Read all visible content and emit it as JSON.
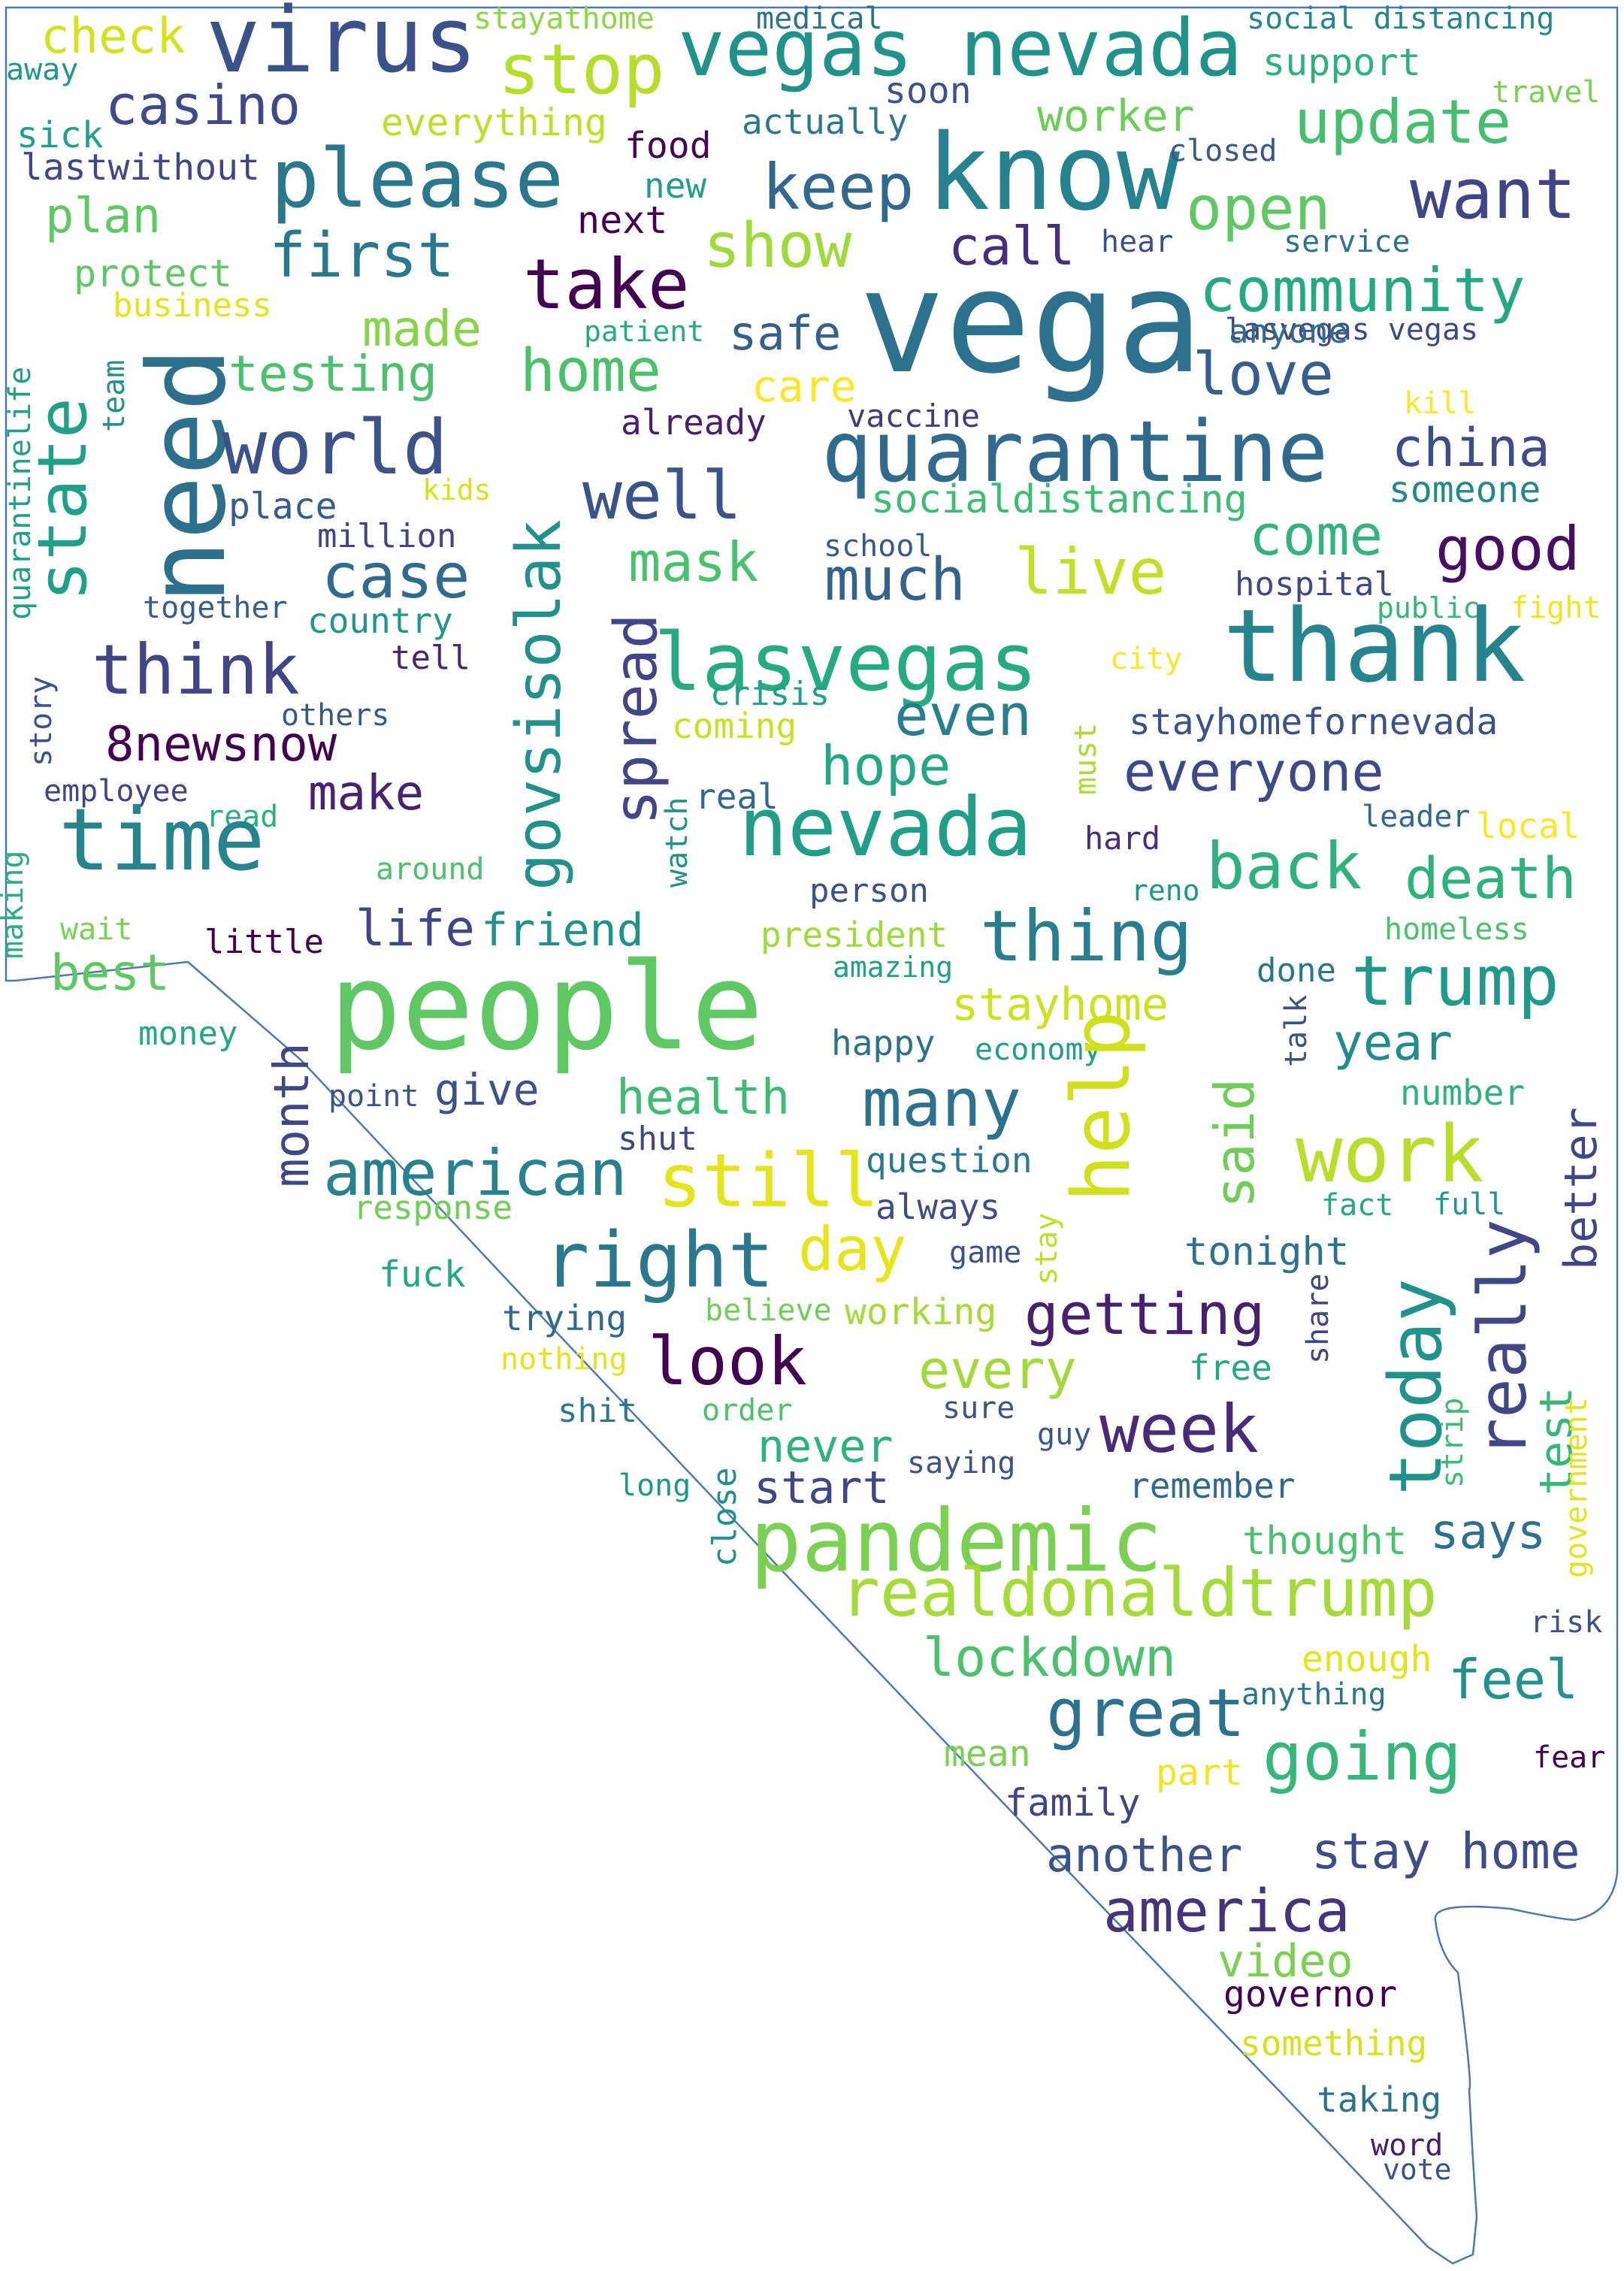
{
  "outline_color": "#4a7ab0",
  "background_color": "#ffffff",
  "words": [
    {
      "text": "check",
      "color": "#d2e21b"
    },
    {
      "text": "virus",
      "color": "#3b518b"
    },
    {
      "text": "stayathome",
      "color": "#8ed645"
    },
    {
      "text": "medical",
      "color": "#2c718e"
    },
    {
      "text": "social distancing",
      "color": "#25858e"
    },
    {
      "text": "away",
      "color": "#1f988b"
    },
    {
      "text": "stop",
      "color": "#b5de2b"
    },
    {
      "text": "vegas nevada",
      "color": "#20928c"
    },
    {
      "text": "support",
      "color": "#2db27d"
    },
    {
      "text": "travel",
      "color": "#7ad151"
    },
    {
      "text": "casino",
      "color": "#3e4a89"
    },
    {
      "text": "soon",
      "color": "#3b528b"
    },
    {
      "text": "sick",
      "color": "#1fa187"
    },
    {
      "text": "everything",
      "color": "#bddf26"
    },
    {
      "text": "actually",
      "color": "#2a788e"
    },
    {
      "text": "worker",
      "color": "#6ccd5a"
    },
    {
      "text": "update",
      "color": "#44bf70"
    },
    {
      "text": "lastwithout",
      "color": "#3f4788"
    },
    {
      "text": "please",
      "color": "#2a788e"
    },
    {
      "text": "food",
      "color": "#450559"
    },
    {
      "text": "know",
      "color": "#26828e"
    },
    {
      "text": "closed",
      "color": "#38588c"
    },
    {
      "text": "plan",
      "color": "#5ec962"
    },
    {
      "text": "new",
      "color": "#1f9e89"
    },
    {
      "text": "keep",
      "color": "#31688e"
    },
    {
      "text": "want",
      "color": "#414487"
    },
    {
      "text": "open",
      "color": "#5ec962"
    },
    {
      "text": "next",
      "color": "#440154"
    },
    {
      "text": "first",
      "color": "#2a788e"
    },
    {
      "text": "show",
      "color": "#a0da39"
    },
    {
      "text": "call",
      "color": "#46307e"
    },
    {
      "text": "hear",
      "color": "#3b518b"
    },
    {
      "text": "service",
      "color": "#2c728e"
    },
    {
      "text": "protect",
      "color": "#5ec962"
    },
    {
      "text": "take",
      "color": "#440154"
    },
    {
      "text": "vega",
      "color": "#2c728e"
    },
    {
      "text": "community",
      "color": "#23a983"
    },
    {
      "text": "business",
      "color": "#e5e419"
    },
    {
      "text": "made",
      "color": "#86d549"
    },
    {
      "text": "patient",
      "color": "#25ab82"
    },
    {
      "text": "safe",
      "color": "#35608d"
    },
    {
      "text": "lasvegas vegas",
      "color": "#3f4889"
    },
    {
      "text": "quarantinelife",
      "color": "#1fa088"
    },
    {
      "text": "team",
      "color": "#21918c"
    },
    {
      "text": "need",
      "color": "#2d708e"
    },
    {
      "text": "testing",
      "color": "#4ac16d"
    },
    {
      "text": "home",
      "color": "#4ac16d"
    },
    {
      "text": "care",
      "color": "#fde725"
    },
    {
      "text": "love",
      "color": "#355f8d"
    },
    {
      "text": "anyone",
      "color": "#2f6c8e"
    },
    {
      "text": "kill",
      "color": "#fde725"
    },
    {
      "text": "state",
      "color": "#1fa188"
    },
    {
      "text": "world",
      "color": "#3b528b"
    },
    {
      "text": "already",
      "color": "#481f70"
    },
    {
      "text": "vaccine",
      "color": "#443a83"
    },
    {
      "text": "quarantine",
      "color": "#306a8e"
    },
    {
      "text": "china",
      "color": "#3e4c8a"
    },
    {
      "text": "kids",
      "color": "#d8e219"
    },
    {
      "text": "place",
      "color": "#365c8d"
    },
    {
      "text": "govsisolak",
      "color": "#21918c"
    },
    {
      "text": "well",
      "color": "#3a538b"
    },
    {
      "text": "someone",
      "color": "#23888e"
    },
    {
      "text": "million",
      "color": "#414487"
    },
    {
      "text": "socialdistancing",
      "color": "#3dbc74"
    },
    {
      "text": "come",
      "color": "#31b57b"
    },
    {
      "text": "good",
      "color": "#470e61"
    },
    {
      "text": "school",
      "color": "#38598c"
    },
    {
      "text": "mask",
      "color": "#4ac16d"
    },
    {
      "text": "much",
      "color": "#33628d"
    },
    {
      "text": "live",
      "color": "#c2df23"
    },
    {
      "text": "case",
      "color": "#2f6b8e"
    },
    {
      "text": "hospital",
      "color": "#3f4889"
    },
    {
      "text": "public",
      "color": "#35b779"
    },
    {
      "text": "fight",
      "color": "#f1e51d"
    },
    {
      "text": "together",
      "color": "#365d8d"
    },
    {
      "text": "country",
      "color": "#1f988b"
    },
    {
      "text": "lasvegas",
      "color": "#25ab82"
    },
    {
      "text": "thank",
      "color": "#25858e"
    },
    {
      "text": "think",
      "color": "#414487"
    },
    {
      "text": "tell",
      "color": "#482576"
    },
    {
      "text": "crisis",
      "color": "#1fa088"
    },
    {
      "text": "city",
      "color": "#fde725"
    },
    {
      "text": "spread",
      "color": "#404688"
    },
    {
      "text": "story",
      "color": "#3b528b"
    },
    {
      "text": "others",
      "color": "#38598c"
    },
    {
      "text": "coming",
      "color": "#c8e020"
    },
    {
      "text": "even",
      "color": "#277f8e"
    },
    {
      "text": "must",
      "color": "#addc30"
    },
    {
      "text": "stayhomefornevada",
      "color": "#3b528b"
    },
    {
      "text": "8newsnow",
      "color": "#440154"
    },
    {
      "text": "hope",
      "color": "#22a884"
    },
    {
      "text": "everyone",
      "color": "#3e4989"
    },
    {
      "text": "make",
      "color": "#482173"
    },
    {
      "text": "employee",
      "color": "#414487"
    },
    {
      "text": "watch",
      "color": "#21918c"
    },
    {
      "text": "real",
      "color": "#31688e"
    },
    {
      "text": "read",
      "color": "#2ab07f"
    },
    {
      "text": "leader",
      "color": "#31688e"
    },
    {
      "text": "local",
      "color": "#fde725"
    },
    {
      "text": "time",
      "color": "#25848e"
    },
    {
      "text": "nevada",
      "color": "#1f9f88"
    },
    {
      "text": "hard",
      "color": "#472d7b"
    },
    {
      "text": "back",
      "color": "#2db27d"
    },
    {
      "text": "death",
      "color": "#2db27d"
    },
    {
      "text": "around",
      "color": "#4ac16d"
    },
    {
      "text": "making",
      "color": "#2ab07f"
    },
    {
      "text": "reno",
      "color": "#1f968b"
    },
    {
      "text": "person",
      "color": "#3b528b"
    },
    {
      "text": "wait",
      "color": "#7ad151"
    },
    {
      "text": "life",
      "color": "#3f4788"
    },
    {
      "text": "friend",
      "color": "#21918c"
    },
    {
      "text": "president",
      "color": "#a0da39"
    },
    {
      "text": "thing",
      "color": "#277e8e"
    },
    {
      "text": "homeless",
      "color": "#4ac16d"
    },
    {
      "text": "little",
      "color": "#440154"
    },
    {
      "text": "best",
      "color": "#5ec962"
    },
    {
      "text": "amazing",
      "color": "#1fa187"
    },
    {
      "text": "done",
      "color": "#2a768e"
    },
    {
      "text": "trump",
      "color": "#1f9a8a"
    },
    {
      "text": "people",
      "color": "#5ec962"
    },
    {
      "text": "stayhome",
      "color": "#cde11d"
    },
    {
      "text": "money",
      "color": "#22a884"
    },
    {
      "text": "month",
      "color": "#3f4788"
    },
    {
      "text": "happy",
      "color": "#2c728e"
    },
    {
      "text": "economy",
      "color": "#1f9e89"
    },
    {
      "text": "talk",
      "color": "#3b528b"
    },
    {
      "text": "year",
      "color": "#228c8d"
    },
    {
      "text": "help",
      "color": "#d0e11c"
    },
    {
      "text": "said",
      "color": "#6ece58"
    },
    {
      "text": "point",
      "color": "#39568c"
    },
    {
      "text": "give",
      "color": "#3b528b"
    },
    {
      "text": "health",
      "color": "#3fbc73"
    },
    {
      "text": "many",
      "color": "#2c728e"
    },
    {
      "text": "number",
      "color": "#2db27d"
    },
    {
      "text": "better",
      "color": "#3f4788"
    },
    {
      "text": "shut",
      "color": "#3f4788"
    },
    {
      "text": "work",
      "color": "#b8de29"
    },
    {
      "text": "american",
      "color": "#26828e"
    },
    {
      "text": "question",
      "color": "#2a788e"
    },
    {
      "text": "response",
      "color": "#6ece58"
    },
    {
      "text": "still",
      "color": "#e5e419"
    },
    {
      "text": "always",
      "color": "#3e4c8a"
    },
    {
      "text": "fact",
      "color": "#23a983"
    },
    {
      "text": "full",
      "color": "#1f988b"
    },
    {
      "text": "stay",
      "color": "#bddf26"
    },
    {
      "text": "day",
      "color": "#e7e419"
    },
    {
      "text": "game",
      "color": "#3b528b"
    },
    {
      "text": "tonight",
      "color": "#2c728e"
    },
    {
      "text": "right",
      "color": "#2a788e"
    },
    {
      "text": "today",
      "color": "#20928c"
    },
    {
      "text": "really",
      "color": "#3f4788"
    },
    {
      "text": "fuck",
      "color": "#22a884"
    },
    {
      "text": "share",
      "color": "#414487"
    },
    {
      "text": "trying",
      "color": "#31688e"
    },
    {
      "text": "believe",
      "color": "#6ece58"
    },
    {
      "text": "working",
      "color": "#a5db36"
    },
    {
      "text": "getting",
      "color": "#482071"
    },
    {
      "text": "nothing",
      "color": "#e5e419"
    },
    {
      "text": "look",
      "color": "#440154"
    },
    {
      "text": "every",
      "color": "#a0da39"
    },
    {
      "text": "free",
      "color": "#22a884"
    },
    {
      "text": "shit",
      "color": "#2a788e"
    },
    {
      "text": "order",
      "color": "#4ac16d"
    },
    {
      "text": "sure",
      "color": "#3b528b"
    },
    {
      "text": "week",
      "color": "#472a7a"
    },
    {
      "text": "test",
      "color": "#35b779"
    },
    {
      "text": "strip",
      "color": "#3fbc73"
    },
    {
      "text": "guy",
      "color": "#38588c"
    },
    {
      "text": "government",
      "color": "#e5e419"
    },
    {
      "text": "never",
      "color": "#2db27d"
    },
    {
      "text": "saying",
      "color": "#3b528b"
    },
    {
      "text": "long",
      "color": "#1f988b"
    },
    {
      "text": "close",
      "color": "#21918c"
    },
    {
      "text": "start",
      "color": "#3f4788"
    },
    {
      "text": "remember",
      "color": "#31688e"
    },
    {
      "text": "pandemic",
      "color": "#7ad151"
    },
    {
      "text": "thought",
      "color": "#4ac16d"
    },
    {
      "text": "says",
      "color": "#2c728e"
    },
    {
      "text": "realdonaldtrump",
      "color": "#a5db36"
    },
    {
      "text": "risk",
      "color": "#3b528b"
    },
    {
      "text": "lockdown",
      "color": "#4ac16d"
    },
    {
      "text": "enough",
      "color": "#e5e419"
    },
    {
      "text": "anything",
      "color": "#2a788e"
    },
    {
      "text": "feel",
      "color": "#21918c"
    },
    {
      "text": "great",
      "color": "#2c718e"
    },
    {
      "text": "mean",
      "color": "#7ad151"
    },
    {
      "text": "going",
      "color": "#35b779"
    },
    {
      "text": "fear",
      "color": "#440154"
    },
    {
      "text": "part",
      "color": "#f1e51d"
    },
    {
      "text": "family",
      "color": "#414487"
    },
    {
      "text": "another",
      "color": "#3b528b"
    },
    {
      "text": "stay home",
      "color": "#3e4c8a"
    },
    {
      "text": "america",
      "color": "#46337e"
    },
    {
      "text": "video",
      "color": "#7ad151"
    },
    {
      "text": "governor",
      "color": "#440154"
    },
    {
      "text": "something",
      "color": "#d8e219"
    },
    {
      "text": "taking",
      "color": "#2c728e"
    },
    {
      "text": "word",
      "color": "#481f70"
    },
    {
      "text": "vote",
      "color": "#3b528b"
    }
  ]
}
